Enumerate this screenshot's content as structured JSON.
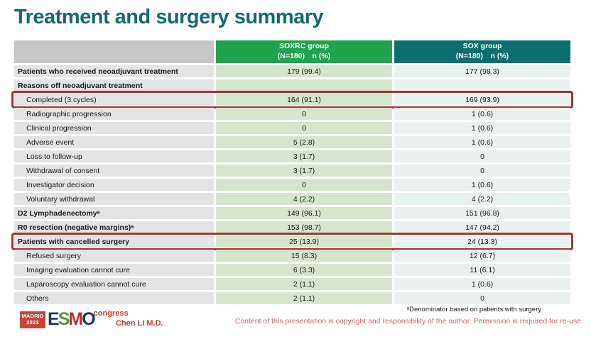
{
  "title": "Treatment and surgery summary",
  "colors": {
    "title_teal": "#17696e",
    "header_green": "#21a24f",
    "header_teal": "#0d6f6d",
    "highlight_red": "#a23535",
    "footer_red": "#c0392b"
  },
  "table": {
    "columns": [
      {
        "line1": "SOXRC group",
        "line2": "(N=180)　n (%)"
      },
      {
        "line1": "SOX group",
        "line2": "(N=180)　n (%)"
      }
    ],
    "rows": [
      {
        "label": "Patients who received neoadjuvant treatment",
        "soxrc": "179 (99.4)",
        "sox": "177 (98.3)"
      },
      {
        "label": "Reasons off neoadjuvant treatment",
        "soxrc": "",
        "sox": ""
      },
      {
        "label": "Completed (3 cycles)",
        "soxrc": "164 (91.1)",
        "sox": "169 (93.9)"
      },
      {
        "label": "Radiographic progression",
        "soxrc": "0",
        "sox": "1 (0.6)"
      },
      {
        "label": "Clinical progression",
        "soxrc": "0",
        "sox": "1 (0.6)"
      },
      {
        "label": "Adverse event",
        "soxrc": "5 (2.8)",
        "sox": "1 (0.6)"
      },
      {
        "label": "Loss to follow-up",
        "soxrc": "3 (1.7)",
        "sox": "0"
      },
      {
        "label": "Withdrawal of consent",
        "soxrc": "3 (1.7)",
        "sox": "0"
      },
      {
        "label": "Investigator decision",
        "soxrc": "0",
        "sox": "1 (0.6)"
      },
      {
        "label": "Voluntary withdrawal",
        "soxrc": "4 (2.2)",
        "sox": "4 (2.2)"
      },
      {
        "label": "D2 Lymphadenectomyᵃ",
        "soxrc": "149 (96.1)",
        "sox": "151 (96.8)"
      },
      {
        "label": "R0 resection (negative margins)ᵃ",
        "soxrc": "153 (98.7)",
        "sox": "147 (94.2)"
      },
      {
        "label": "Patients with cancelled surgery",
        "soxrc": "25 (13.9)",
        "sox": "24 (13.3)"
      },
      {
        "label": "Refused surgery",
        "soxrc": "15 (8.3)",
        "sox": "12 (6.7)"
      },
      {
        "label": "Imaging evaluation cannot cure",
        "soxrc": "6 (3.3)",
        "sox": "11 (6.1)"
      },
      {
        "label": "Laparoscopy evaluation cannot cure",
        "soxrc": "2 (1.1)",
        "sox": "1 (0.6)"
      },
      {
        "label": "Others",
        "soxrc": "2 (1.1)",
        "sox": "0"
      }
    ]
  },
  "chart_data": {
    "type": "table",
    "title": "Treatment and surgery summary",
    "columns": [
      "",
      "SOXRC group (N=180) n (%)",
      "SOX group (N=180) n (%)"
    ],
    "highlighted_rows": [
      "Completed (3 cycles)",
      "Patients with cancelled surgery"
    ]
  },
  "footer": {
    "presenter": "Chen LI M.D.",
    "footnote": "ᵃDenominator based on patients with surgery",
    "copyright": "Content of this presentation is copyright and responsibility of the author.  Permission is required for re-use.",
    "logo": {
      "city": "MADRID",
      "year": "2023",
      "letters": [
        "E",
        "S",
        "M",
        "O"
      ],
      "congress": "congress"
    }
  }
}
